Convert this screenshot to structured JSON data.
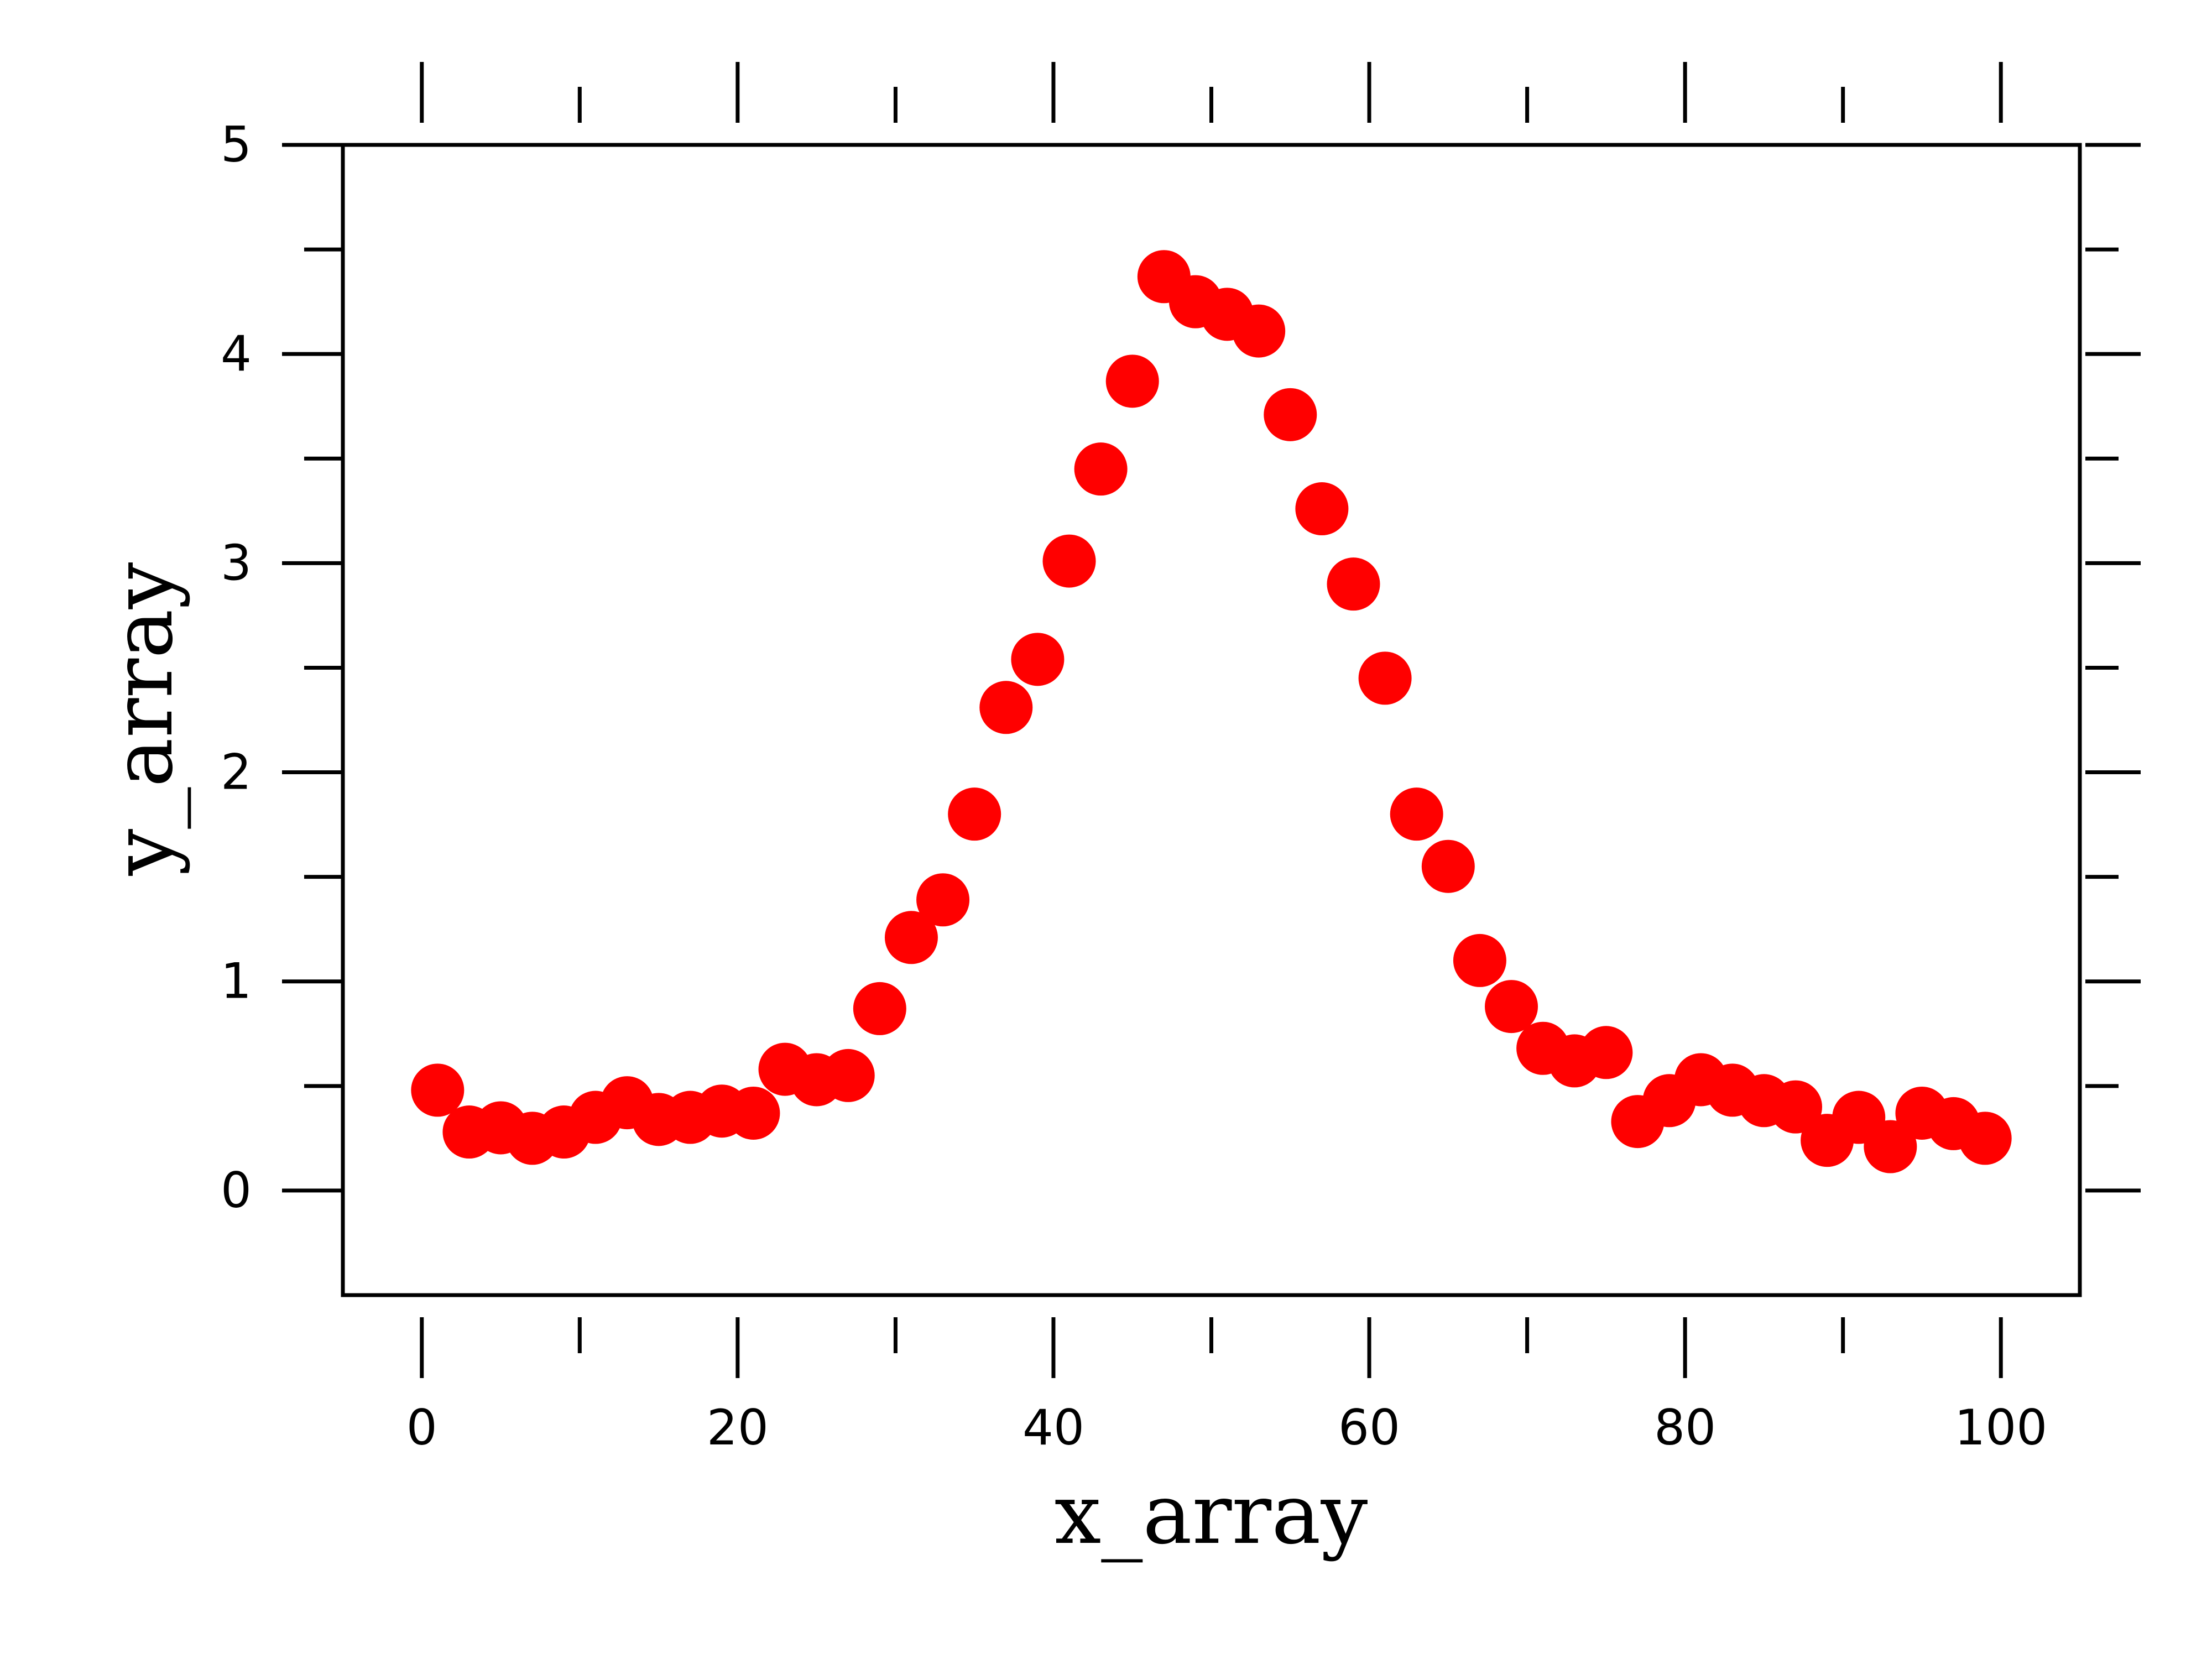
{
  "chart_data": {
    "type": "scatter",
    "xlabel": "x_array",
    "ylabel": "y_array",
    "xlim": [
      -5,
      105
    ],
    "ylim": [
      -0.5,
      5
    ],
    "x_ticks": [
      0,
      20,
      40,
      60,
      80,
      100
    ],
    "x_minor_ticks": [
      10,
      30,
      50,
      70,
      90
    ],
    "y_ticks": [
      0,
      1,
      2,
      3,
      4,
      5
    ],
    "y_minor_ticks": [
      0.5,
      1.5,
      2.5,
      3.5,
      4.5
    ],
    "grid": false,
    "marker_color": "#ff0000",
    "series": [
      {
        "x": [
          1,
          3,
          5,
          7,
          9,
          11,
          13,
          15,
          17,
          19,
          21,
          23,
          25,
          27,
          29,
          31,
          33,
          35,
          37,
          39,
          41,
          43,
          45,
          47,
          49,
          51,
          53,
          55,
          57,
          59,
          61,
          63,
          65,
          67,
          69,
          71,
          73,
          75,
          77,
          79,
          81,
          83,
          85,
          87,
          89,
          91,
          93,
          95,
          97,
          99
        ],
        "y": [
          0.48,
          0.28,
          0.3,
          0.25,
          0.28,
          0.35,
          0.42,
          0.34,
          0.35,
          0.38,
          0.37,
          0.58,
          0.53,
          0.55,
          0.87,
          1.21,
          1.39,
          1.8,
          2.31,
          2.54,
          3.01,
          3.45,
          3.87,
          4.37,
          4.25,
          4.19,
          4.11,
          3.71,
          3.26,
          2.9,
          2.45,
          1.8,
          1.55,
          1.1,
          0.88,
          0.68,
          0.62,
          0.66,
          0.33,
          0.43,
          0.53,
          0.48,
          0.43,
          0.4,
          0.24,
          0.35,
          0.21,
          0.37,
          0.32,
          0.25
        ]
      }
    ]
  }
}
